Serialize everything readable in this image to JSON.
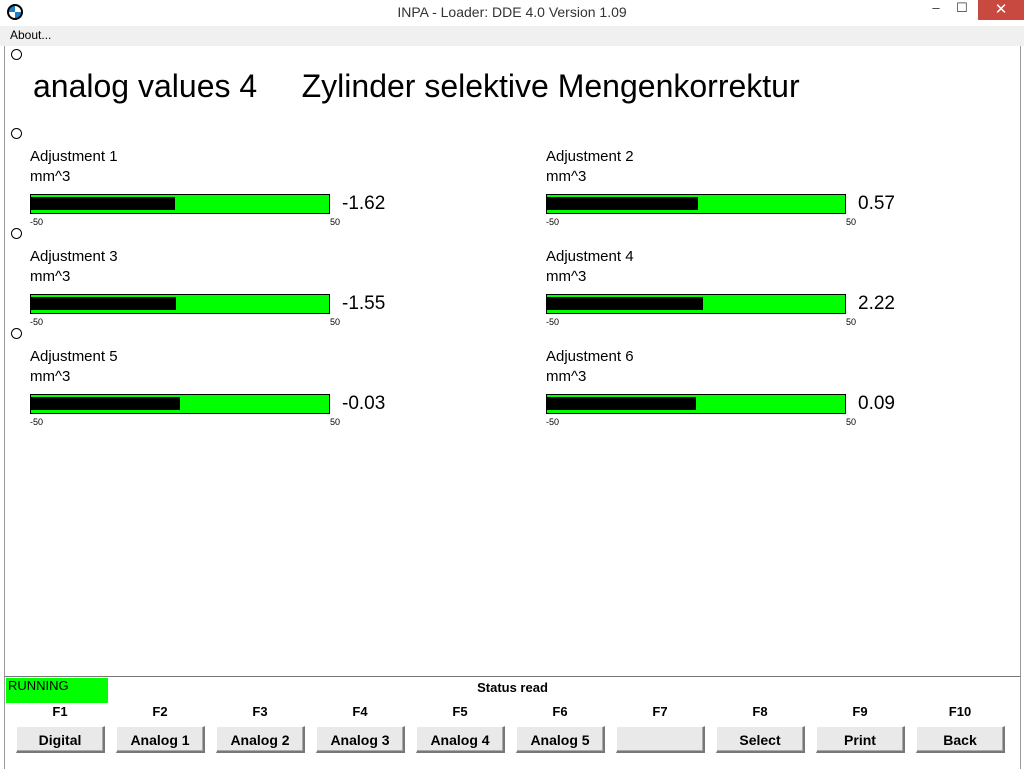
{
  "window": {
    "title": "INPA - Loader:  DDE 4.0 Version 1.09",
    "minimize": "–",
    "maximize": "☐",
    "close": "✕"
  },
  "menu": {
    "about": "About..."
  },
  "page": {
    "title": "analog values 4     Zylinder selektive Mengenkorrektur"
  },
  "gauges": [
    {
      "label": "Adjustment 1",
      "unit": "mm^3",
      "value": "-1.62",
      "fill": 0.484,
      "min": "-50",
      "max": "50"
    },
    {
      "label": "Adjustment 2",
      "unit": "mm^3",
      "value": "0.57",
      "fill": 0.506,
      "min": "-50",
      "max": "50"
    },
    {
      "label": "Adjustment 3",
      "unit": "mm^3",
      "value": "-1.55",
      "fill": 0.485,
      "min": "-50",
      "max": "50"
    },
    {
      "label": "Adjustment 4",
      "unit": "mm^3",
      "value": "2.22",
      "fill": 0.522,
      "min": "-50",
      "max": "50"
    },
    {
      "label": "Adjustment 5",
      "unit": "mm^3",
      "value": "-0.03",
      "fill": 0.5,
      "min": "-50",
      "max": "50"
    },
    {
      "label": "Adjustment 6",
      "unit": "mm^3",
      "value": "0.09",
      "fill": 0.501,
      "min": "-50",
      "max": "50"
    }
  ],
  "status": {
    "state": "RUNNING",
    "message": "Status read",
    "state_color": "#00ff00"
  },
  "fkeys": [
    {
      "key": "F1",
      "label": "Digital"
    },
    {
      "key": "F2",
      "label": "Analog 1"
    },
    {
      "key": "F3",
      "label": "Analog 2"
    },
    {
      "key": "F4",
      "label": "Analog 3"
    },
    {
      "key": "F5",
      "label": "Analog 4"
    },
    {
      "key": "F6",
      "label": "Analog 5"
    },
    {
      "key": "F7",
      "label": ""
    },
    {
      "key": "F8",
      "label": "Select"
    },
    {
      "key": "F9",
      "label": "Print"
    },
    {
      "key": "F10",
      "label": "Back"
    }
  ],
  "colors": {
    "bar_background": "#00ff00",
    "bar_fill": "#000000",
    "close_button": "#c7493f"
  },
  "icons": {
    "app": "bmw-logo-icon"
  }
}
